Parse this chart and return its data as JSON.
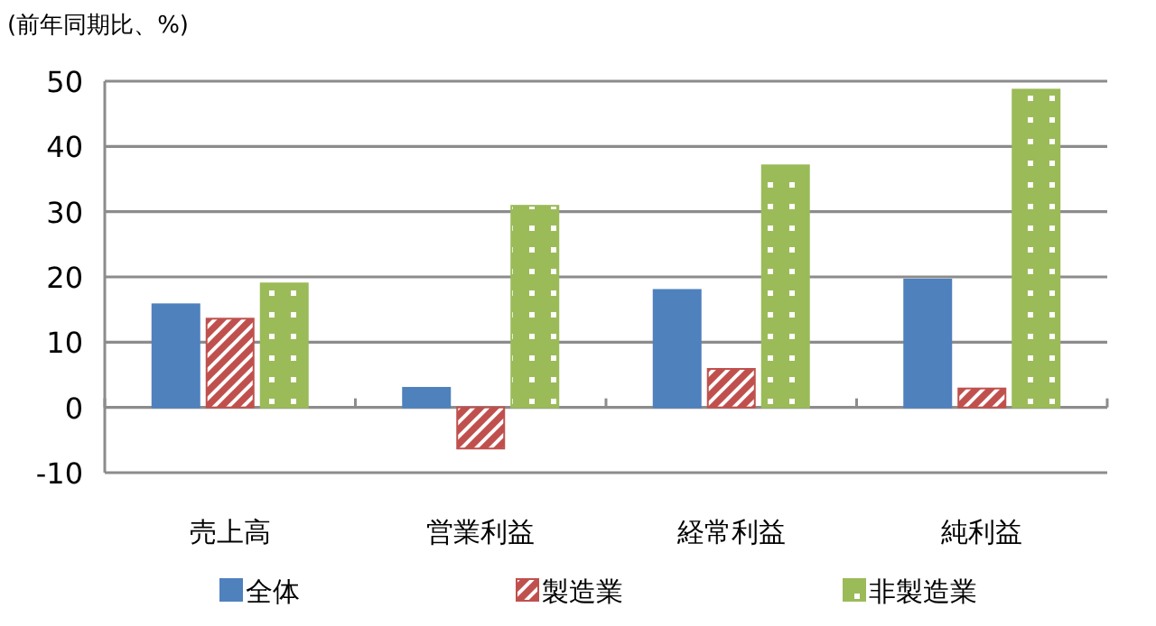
{
  "chart_data": {
    "type": "bar",
    "ylabel": "(前年同期比、%)",
    "categories": [
      "売上高",
      "営業利益",
      "経常利益",
      "純利益"
    ],
    "series": [
      {
        "name": "全体",
        "color": "#4f81bd",
        "values": [
          15.8,
          3.0,
          18.0,
          19.6
        ]
      },
      {
        "name": "製造業",
        "color": "#c0504d",
        "values": [
          13.6,
          -6.3,
          5.9,
          2.9
        ]
      },
      {
        "name": "非製造業",
        "color": "#9bbb59",
        "values": [
          19.0,
          30.9,
          37.1,
          48.7
        ]
      }
    ],
    "ylim": [
      -10,
      50
    ],
    "yticks": [
      -10,
      0,
      10,
      20,
      30,
      40,
      50
    ],
    "grid": "y",
    "legend": "bottom"
  }
}
